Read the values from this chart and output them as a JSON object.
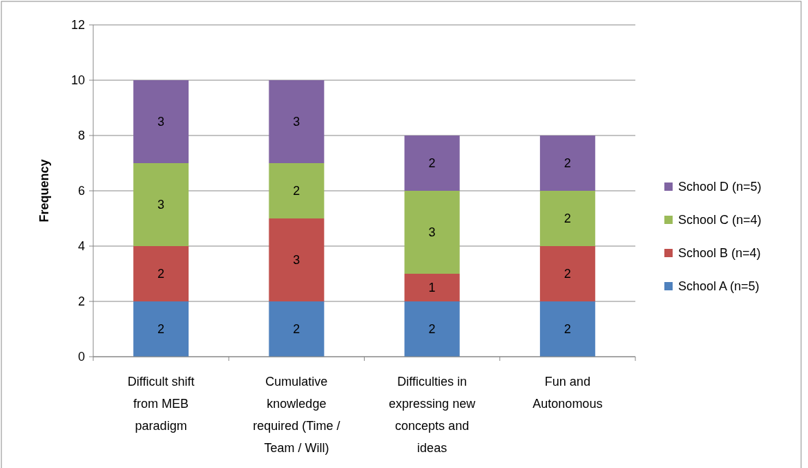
{
  "chart_data": {
    "type": "bar",
    "stacked": true,
    "ylabel": "Frequency",
    "categories": [
      "Difficult shift from MEB paradigm",
      "Cumulative knowledge required (Time / Team / Will)",
      "Difficulties in expressing new concepts and ideas",
      "Fun and Autonomous"
    ],
    "series": [
      {
        "name": "School A (n=5)",
        "color": "#4f81bd",
        "values": [
          2,
          2,
          2,
          2
        ]
      },
      {
        "name": "School B (n=4)",
        "color": "#c0504d",
        "values": [
          2,
          3,
          1,
          2
        ]
      },
      {
        "name": "School C (n=4)",
        "color": "#9bbb59",
        "values": [
          3,
          2,
          3,
          2
        ]
      },
      {
        "name": "School D (n=5)",
        "color": "#8064a2",
        "values": [
          3,
          3,
          2,
          2
        ]
      }
    ],
    "ylim": [
      0,
      12
    ],
    "yticks": [
      0,
      2,
      4,
      6,
      8,
      10,
      12
    ],
    "grid": "y",
    "legend": "right",
    "data_labels": true
  }
}
